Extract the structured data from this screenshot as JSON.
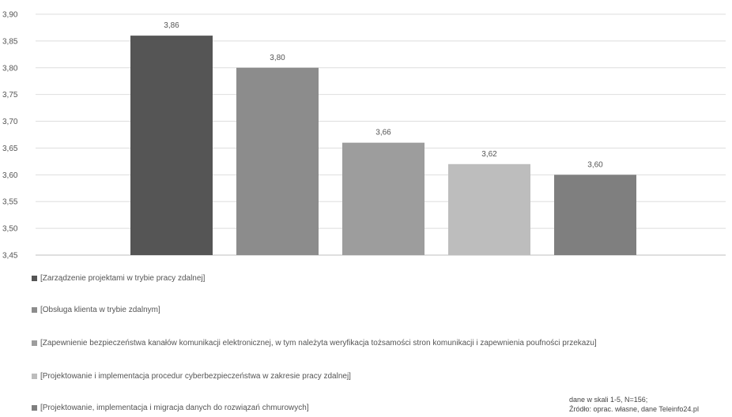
{
  "chart_data": {
    "type": "bar",
    "categories": [
      "[Zarządzenie projektami w trybie pracy zdalnej]",
      "[Obsługa klienta w trybie zdalnym]",
      "[Zapewnienie bezpieczeństwa kanałów komunikacji elektronicznej, w tym należyta weryfikacja tożsamości stron komunikacji i zapewnienia poufności przekazu]",
      "[Projektowanie i implementacja procedur cyberbezpieczeństwa w zakresie pracy zdalnej]",
      "[Projektowanie, implementacja i migracja danych do rozwiązań chmurowych]"
    ],
    "values": [
      3.86,
      3.8,
      3.66,
      3.62,
      3.6
    ],
    "value_labels": [
      "3,86",
      "3,80",
      "3,66",
      "3,62",
      "3,60"
    ],
    "colors": [
      "#555555",
      "#8c8c8c",
      "#9d9d9d",
      "#bdbdbd",
      "#7f7f7f"
    ],
    "ylim": [
      3.45,
      3.9
    ],
    "yticks": [
      "3,45",
      "3,50",
      "3,55",
      "3,60",
      "3,65",
      "3,70",
      "3,75",
      "3,80",
      "3,85",
      "3,90"
    ],
    "ytick_values": [
      3.45,
      3.5,
      3.55,
      3.6,
      3.65,
      3.7,
      3.75,
      3.8,
      3.85,
      3.9
    ],
    "grid": true,
    "legend_position": "bottom",
    "title": "",
    "xlabel": "",
    "ylabel": ""
  },
  "note": {
    "line1": "dane w skali 1-5, N=156;",
    "line2": "Źródło: oprac. własne, dane Teleinfo24.pl"
  }
}
